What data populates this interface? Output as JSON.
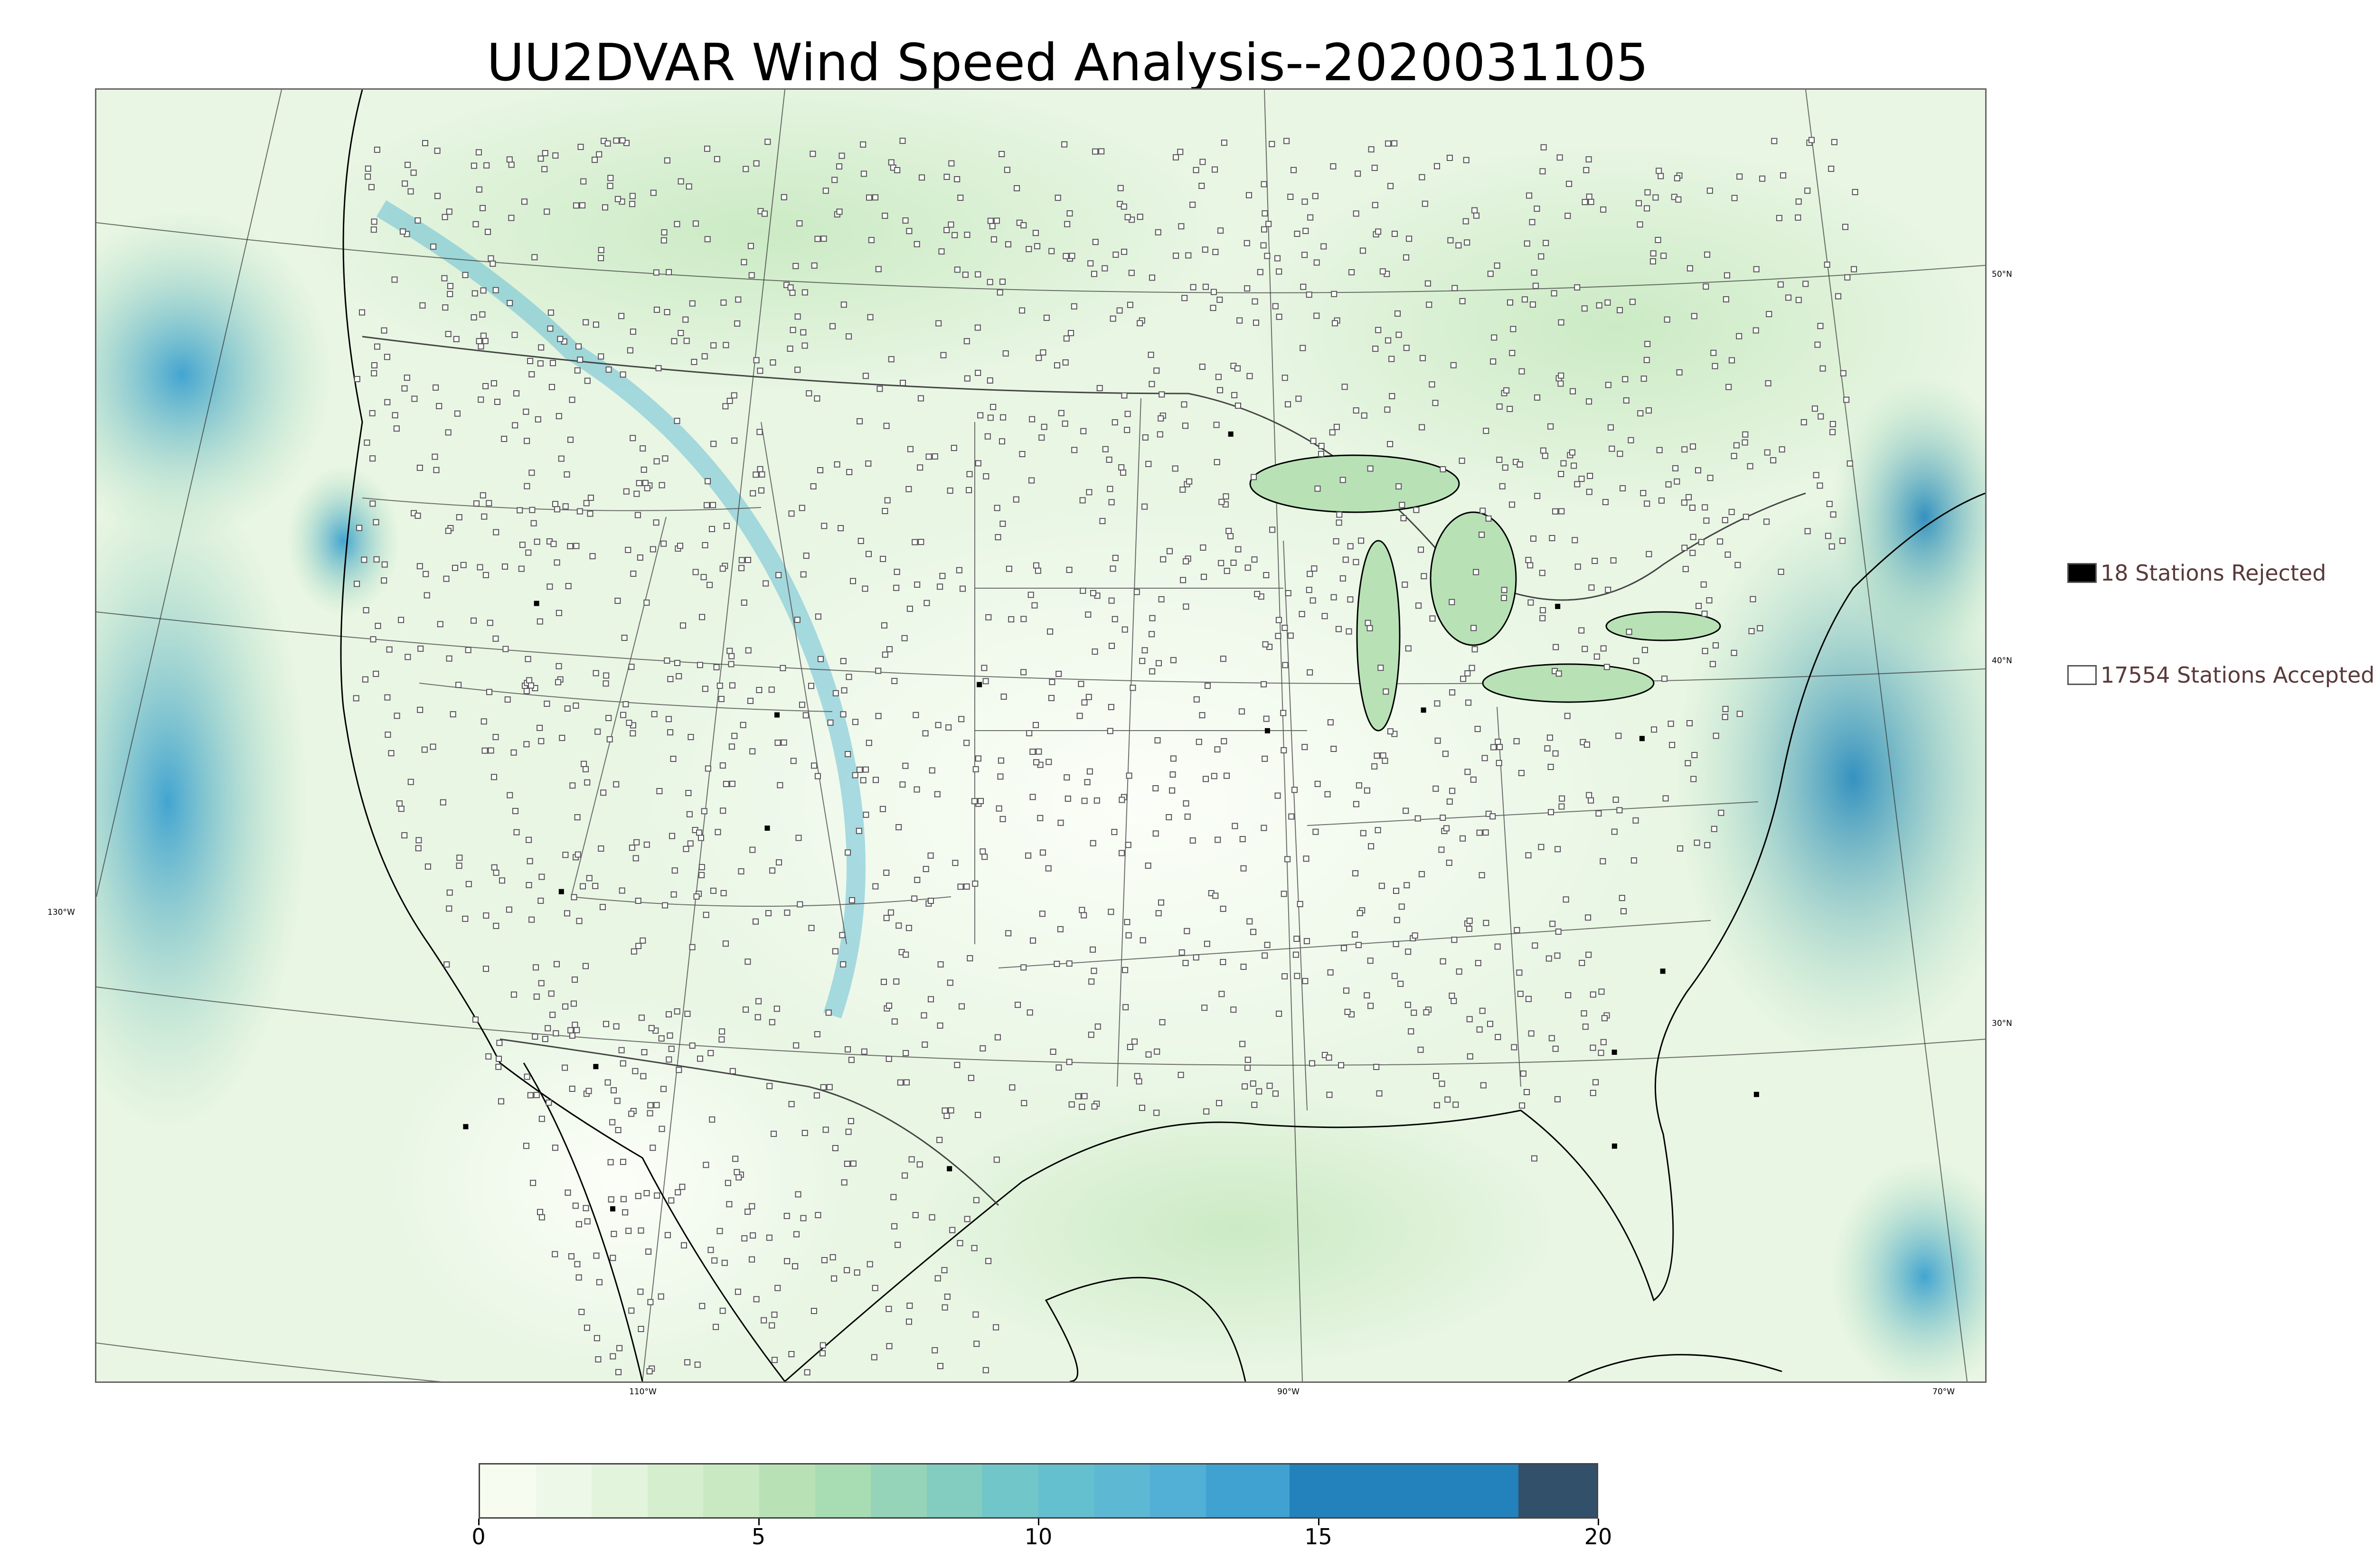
{
  "title": "UU2DVAR Wind Speed Analysis--2020031105",
  "map": {
    "field": "wind speed",
    "longitude_labels": [
      "110°W",
      "90°W",
      "70°W"
    ],
    "longitude_label_130": "130°W",
    "latitude_labels": [
      "50°N",
      "40°N",
      "30°N"
    ],
    "colors": {
      "calm": "#f7fcf0",
      "light": "#d8f0d2",
      "moderate": "#a8ddb5",
      "strong": "#4eb3d3",
      "very_strong": "#2b8cbe",
      "max": "#2f5068",
      "state_lines": "#555555",
      "coastline": "#000000"
    }
  },
  "legend": {
    "rejected_label": "18 Stations Rejected",
    "accepted_label": "17554 Stations Accepted",
    "rejected_color": "#000000",
    "accepted_color": "#ffffff"
  },
  "colorbar": {
    "min": 0,
    "max": 20,
    "ticks": [
      "0",
      "5",
      "10",
      "15",
      "20"
    ],
    "segments": [
      {
        "from": 0,
        "to": 1,
        "color": "#f7fcf0"
      },
      {
        "from": 1,
        "to": 2,
        "color": "#eef8e9"
      },
      {
        "from": 2,
        "to": 3,
        "color": "#e3f4dd"
      },
      {
        "from": 3,
        "to": 4,
        "color": "#d5eece"
      },
      {
        "from": 4,
        "to": 5,
        "color": "#c8e9c1"
      },
      {
        "from": 5,
        "to": 6,
        "color": "#b8e2b6"
      },
      {
        "from": 6,
        "to": 7,
        "color": "#a8dcb3"
      },
      {
        "from": 7,
        "to": 8,
        "color": "#95d4b9"
      },
      {
        "from": 8,
        "to": 9,
        "color": "#82cdc0"
      },
      {
        "from": 9,
        "to": 10,
        "color": "#70c6c9"
      },
      {
        "from": 10,
        "to": 11,
        "color": "#64bfcf"
      },
      {
        "from": 11,
        "to": 12,
        "color": "#5cb8d3"
      },
      {
        "from": 12,
        "to": 13,
        "color": "#52b0d6"
      },
      {
        "from": 13,
        "to": 14.5,
        "color": "#3fa2d0"
      },
      {
        "from": 14.5,
        "to": 18.6,
        "color": "#2382bb"
      },
      {
        "from": 18.6,
        "to": 20,
        "color": "#33506a"
      }
    ]
  }
}
